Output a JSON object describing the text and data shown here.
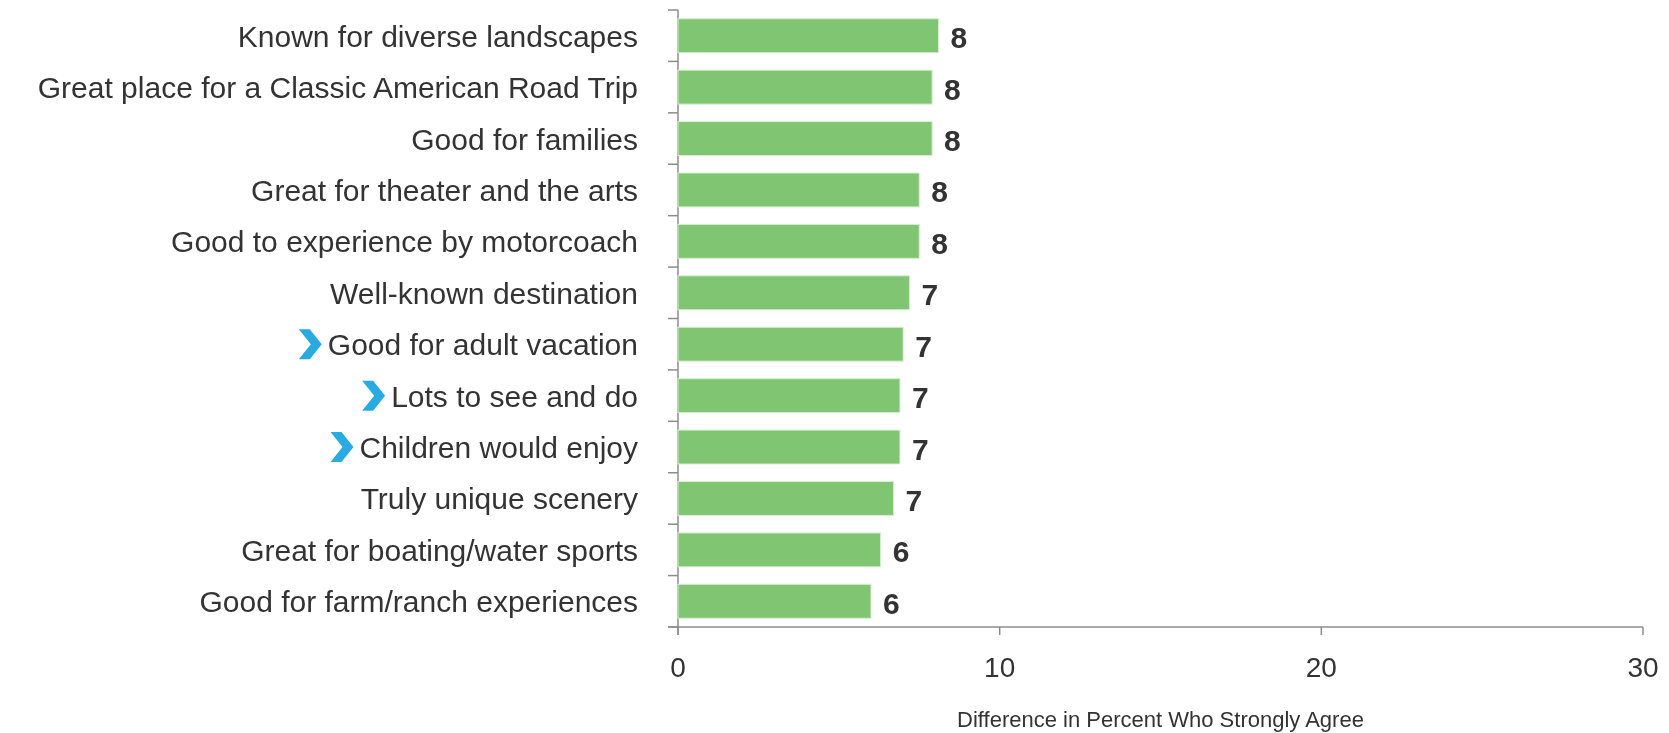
{
  "chart_data": {
    "type": "bar",
    "orientation": "horizontal",
    "categories": [
      "Known for diverse landscapes",
      "Great place for a Classic American Road Trip",
      "Good for families",
      "Great for theater and the arts",
      "Good to experience by motorcoach",
      "Well-known destination",
      "Good for adult vacation",
      "Lots to see and do",
      "Children would enjoy",
      "Truly unique scenery",
      "Great for boating/water sports",
      "Good for farm/ranch experiences"
    ],
    "values": [
      8.1,
      7.9,
      7.9,
      7.5,
      7.5,
      7.2,
      7.0,
      6.9,
      6.9,
      6.7,
      6.3,
      6.0
    ],
    "value_labels": [
      "8",
      "8",
      "8",
      "8",
      "8",
      "7",
      "7",
      "7",
      "7",
      "7",
      "6",
      "6"
    ],
    "color": "#80c571",
    "xlim": [
      0,
      30
    ],
    "xticks": [
      0,
      10,
      20,
      30
    ],
    "xlabel": "Difference in Percent Who Strongly Agree"
  }
}
